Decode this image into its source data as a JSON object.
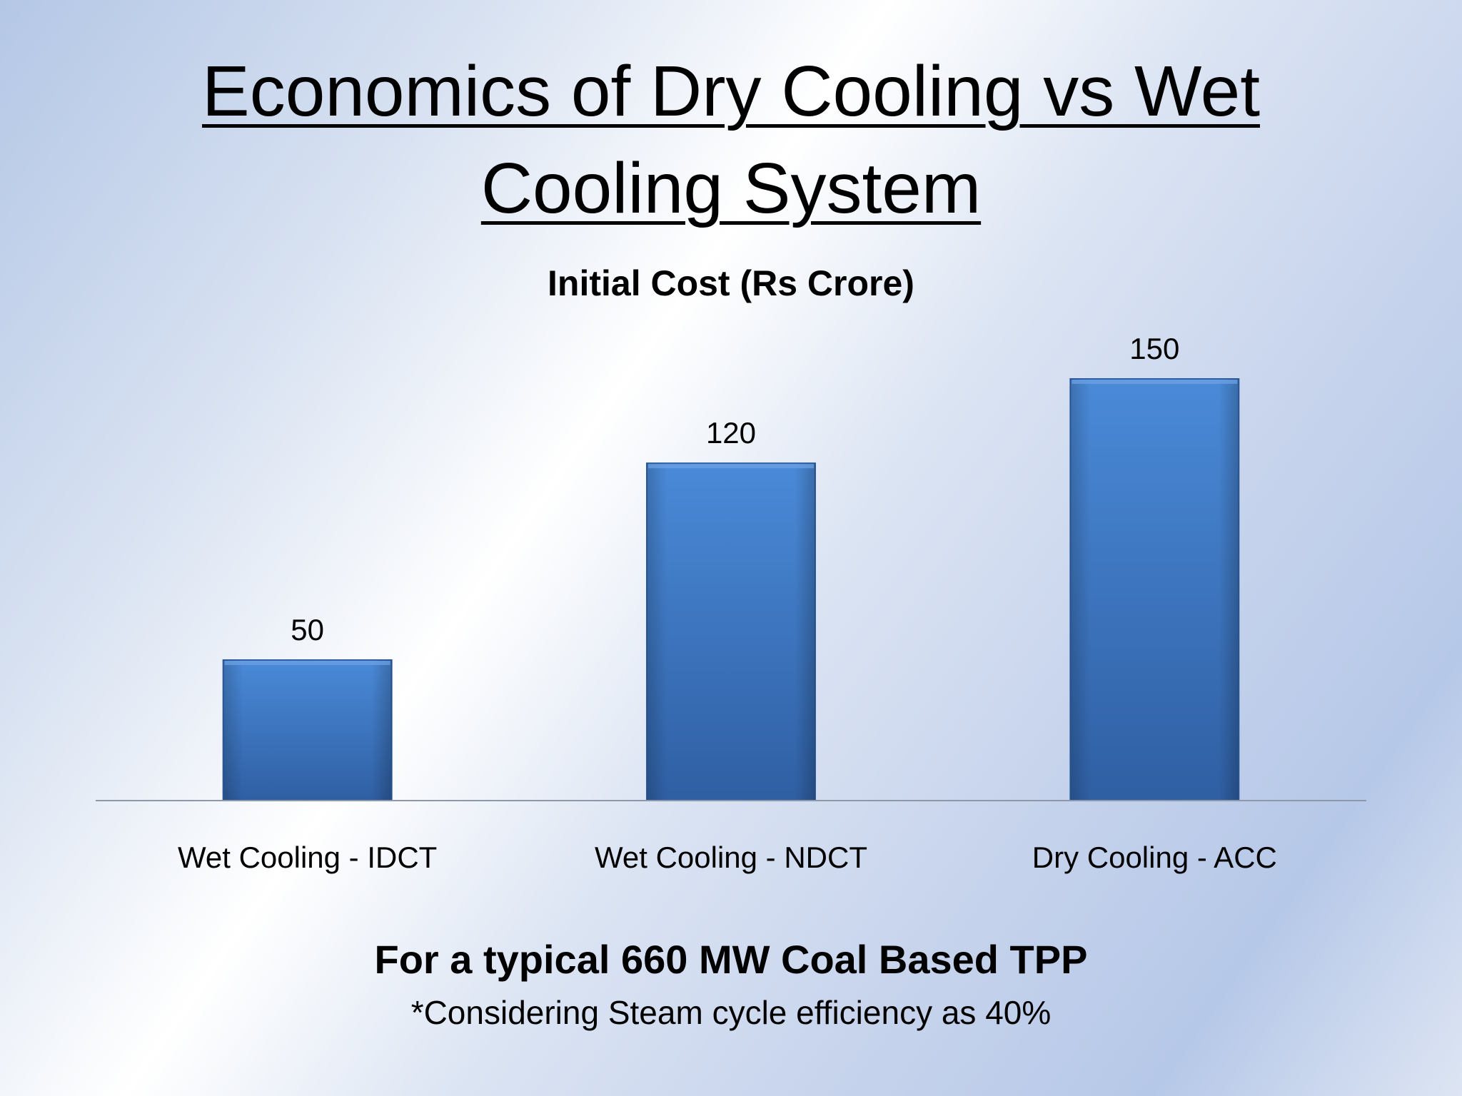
{
  "slide": {
    "title_line1": "Economics of Dry Cooling vs Wet",
    "title_line2": "Cooling System",
    "footer_main": "For a typical 660 MW Coal Based TPP",
    "footer_note": "*Considering Steam cycle efficiency as 40%"
  },
  "chart_data": {
    "type": "bar",
    "title": "Initial Cost (Rs Crore)",
    "categories": [
      "Wet Cooling - IDCT",
      "Wet Cooling - NDCT",
      "Dry Cooling - ACC"
    ],
    "values": [
      50,
      120,
      150
    ],
    "data_labels": [
      "50",
      "120",
      "150"
    ],
    "xlabel": "",
    "ylabel": "",
    "grid": false,
    "legend": "none",
    "bar_color": "#3a77c8",
    "bar_color_light": "#4a8ad8",
    "bar_color_dark": "#2f5fa3",
    "axis_color": "#8e98a8"
  }
}
